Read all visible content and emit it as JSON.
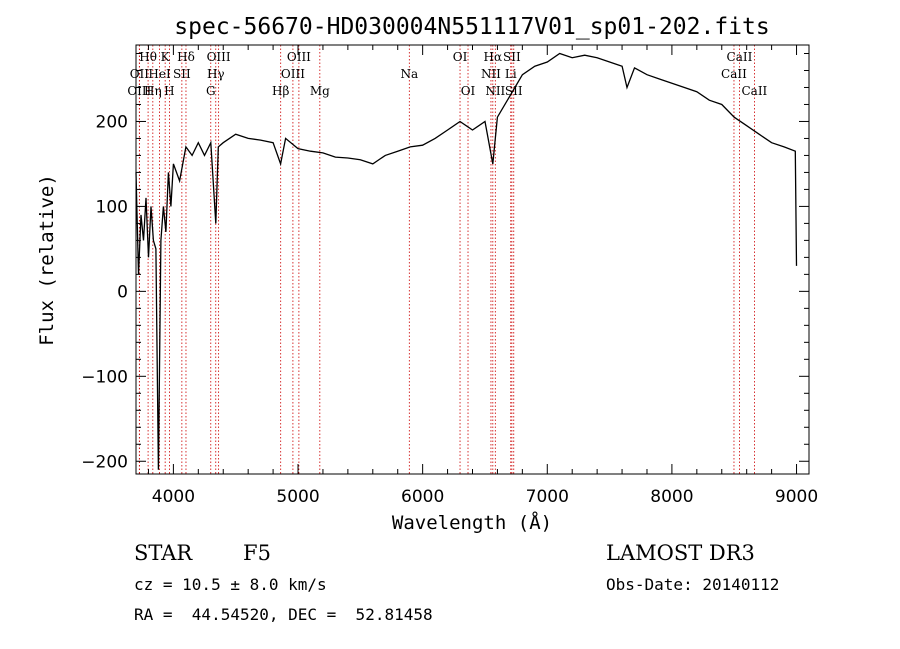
{
  "chart_data": {
    "type": "line",
    "title": "spec-56670-HD030004N551117V01_sp01-202.fits",
    "xlabel": "Wavelength (Å)",
    "ylabel": "Flux (relative)",
    "xlim": [
      3700,
      9100
    ],
    "ylim": [
      -215,
      290
    ],
    "xticks": [
      4000,
      5000,
      6000,
      7000,
      8000,
      9000
    ],
    "xtick_labels": [
      "4000",
      "5000",
      "6000",
      "7000",
      "8000",
      "9000"
    ],
    "yticks": [
      -200,
      -100,
      0,
      100,
      200
    ],
    "ytick_labels": [
      "−200",
      "−100",
      "0",
      "100",
      "200"
    ],
    "series": [
      {
        "name": "flux",
        "color": "#000000",
        "x": [
          3700,
          3720,
          3740,
          3760,
          3780,
          3800,
          3820,
          3840,
          3860,
          3880,
          3900,
          3920,
          3940,
          3960,
          3980,
          4000,
          4050,
          4100,
          4150,
          4200,
          4250,
          4300,
          4340,
          4360,
          4400,
          4500,
          4600,
          4700,
          4800,
          4860,
          4900,
          5000,
          5100,
          5200,
          5300,
          5400,
          5500,
          5600,
          5700,
          5800,
          5900,
          6000,
          6100,
          6200,
          6300,
          6400,
          6500,
          6563,
          6600,
          6700,
          6800,
          6900,
          7000,
          7100,
          7200,
          7300,
          7400,
          7500,
          7600,
          7640,
          7700,
          7800,
          7900,
          8000,
          8100,
          8200,
          8300,
          8400,
          8500,
          8600,
          8700,
          8800,
          8900,
          8990,
          9000
        ],
        "y": [
          140,
          20,
          90,
          60,
          110,
          40,
          100,
          60,
          50,
          -210,
          60,
          100,
          70,
          140,
          100,
          150,
          130,
          170,
          160,
          175,
          160,
          175,
          80,
          170,
          175,
          185,
          180,
          178,
          175,
          150,
          180,
          168,
          165,
          163,
          158,
          157,
          155,
          150,
          160,
          165,
          170,
          172,
          180,
          190,
          200,
          190,
          200,
          150,
          205,
          230,
          255,
          265,
          270,
          280,
          275,
          278,
          275,
          270,
          265,
          240,
          263,
          255,
          250,
          245,
          240,
          235,
          225,
          220,
          205,
          195,
          185,
          175,
          170,
          165,
          30
        ]
      }
    ],
    "spectral_lines": [
      {
        "name": "Hθ",
        "x": 3797,
        "row": 0
      },
      {
        "name": "OII",
        "x": 3727,
        "row": 1
      },
      {
        "name": "OIII",
        "x": 3727,
        "row": 2
      },
      {
        "name": "HeI",
        "x": 3889,
        "row": 1
      },
      {
        "name": "Hη",
        "x": 3835,
        "row": 2
      },
      {
        "name": "K",
        "x": 3934,
        "row": 0
      },
      {
        "name": "H",
        "x": 3968,
        "row": 2
      },
      {
        "name": "SII",
        "x": 4068,
        "row": 1
      },
      {
        "name": "Hδ",
        "x": 4101,
        "row": 0
      },
      {
        "name": "OIII",
        "x": 4363,
        "row": 0
      },
      {
        "name": "Hγ",
        "x": 4340,
        "row": 1
      },
      {
        "name": "G",
        "x": 4300,
        "row": 2
      },
      {
        "name": "Hβ",
        "x": 4861,
        "row": 2
      },
      {
        "name": "OIII",
        "x": 5007,
        "row": 0
      },
      {
        "name": "OIII",
        "x": 4959,
        "row": 1
      },
      {
        "name": "Mg",
        "x": 5175,
        "row": 2
      },
      {
        "name": "Na",
        "x": 5893,
        "row": 1
      },
      {
        "name": "OI",
        "x": 6300,
        "row": 0
      },
      {
        "name": "OI",
        "x": 6364,
        "row": 2
      },
      {
        "name": "Hα",
        "x": 6563,
        "row": 0
      },
      {
        "name": "SII",
        "x": 6716,
        "row": 0
      },
      {
        "name": "NII",
        "x": 6548,
        "row": 1
      },
      {
        "name": "Li",
        "x": 6707,
        "row": 1
      },
      {
        "name": "NII",
        "x": 6583,
        "row": 2
      },
      {
        "name": "SII",
        "x": 6731,
        "row": 2
      },
      {
        "name": "CaII",
        "x": 8542,
        "row": 0
      },
      {
        "name": "CaII",
        "x": 8498,
        "row": 1
      },
      {
        "name": "CaII",
        "x": 8662,
        "row": 2
      }
    ],
    "line_color": "#cc0000"
  },
  "info": {
    "class": "STAR",
    "subclass": "F5",
    "survey": "LAMOST DR3",
    "cz": "cz = 10.5 ± 8.0 km/s",
    "obs_date": "Obs-Date: 20140112",
    "radec": "RA =  44.54520, DEC =  52.81458"
  }
}
